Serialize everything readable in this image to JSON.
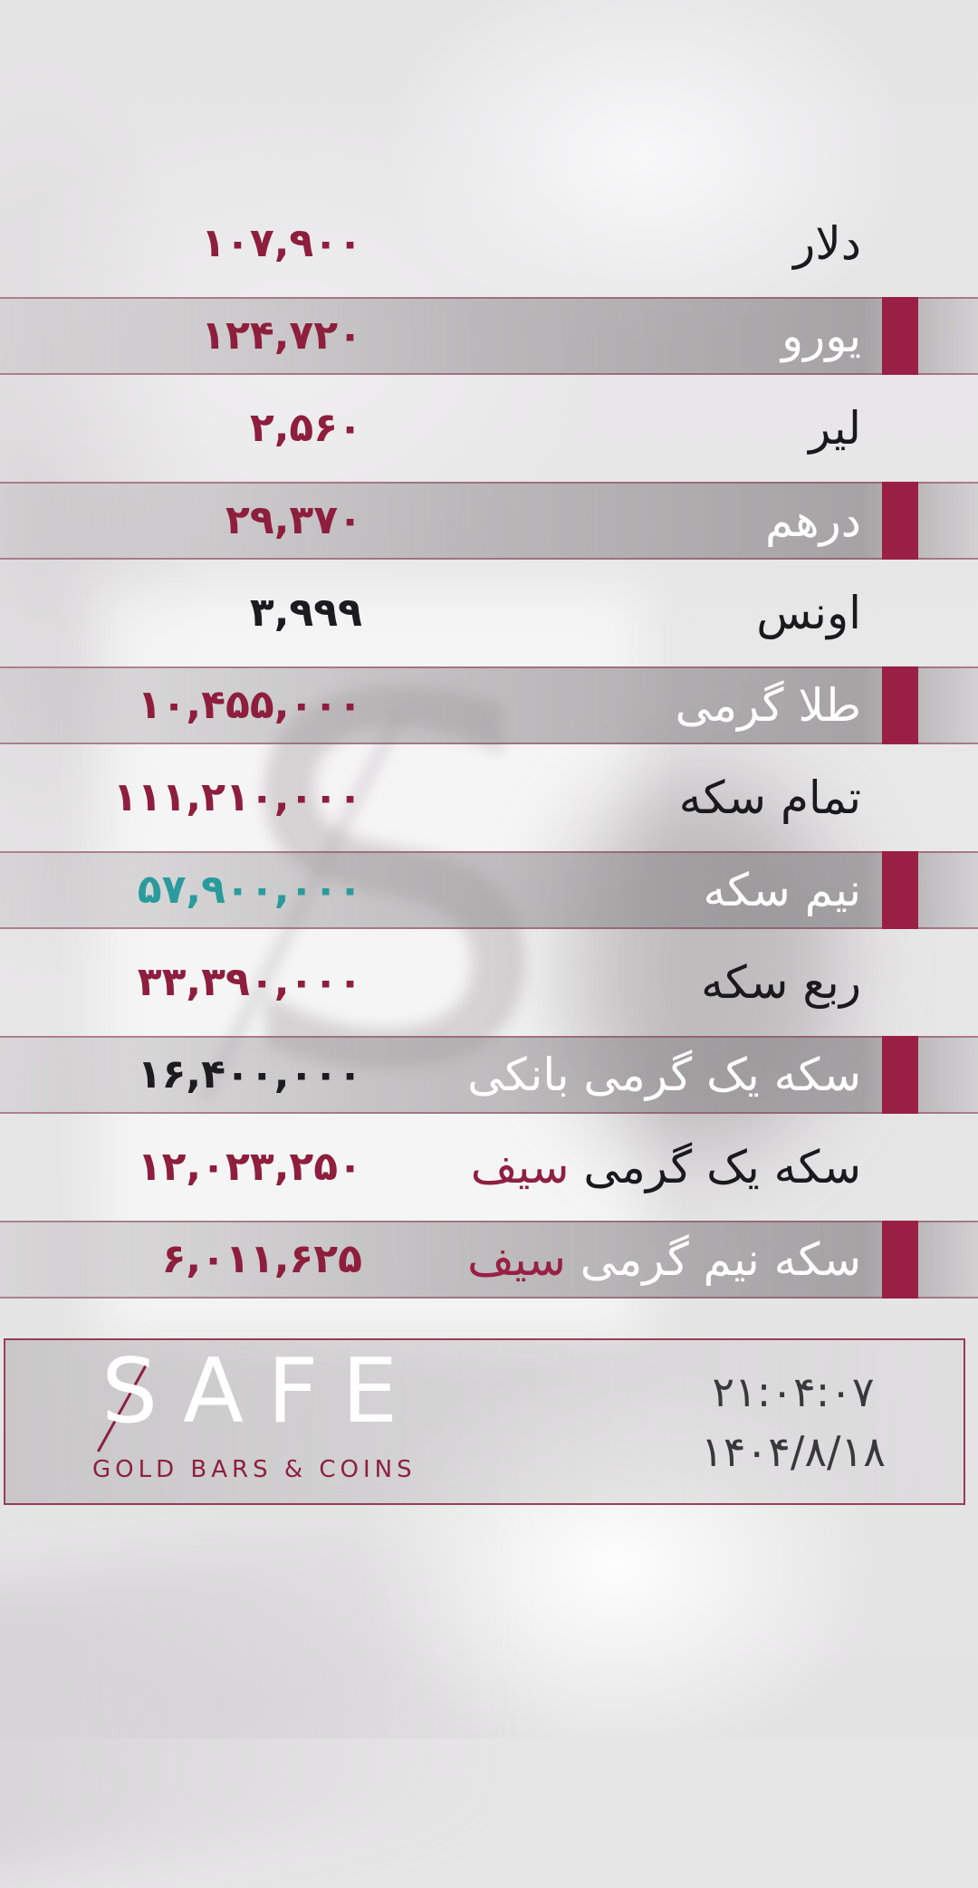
{
  "board": {
    "rows": [
      {
        "label": "دلار",
        "highlight": "",
        "value": "۱۰۷,۹۰۰",
        "value_color": "crimson",
        "band": false
      },
      {
        "label": "یورو",
        "highlight": "",
        "value": "۱۲۴,۷۲۰",
        "value_color": "crimson",
        "band": true
      },
      {
        "label": "لیر",
        "highlight": "",
        "value": "۲,۵۶۰",
        "value_color": "crimson",
        "band": false
      },
      {
        "label": "درهم",
        "highlight": "",
        "value": "۲۹,۳۷۰",
        "value_color": "crimson",
        "band": true
      },
      {
        "label": "اونس",
        "highlight": "",
        "value": "۳,۹۹۹",
        "value_color": "black",
        "band": false
      },
      {
        "label": "طلا گرمی",
        "highlight": "",
        "value": "۱۰,۴۵۵,۰۰۰",
        "value_color": "crimson",
        "band": true
      },
      {
        "label": "تمام سکه",
        "highlight": "",
        "value": "۱۱۱,۲۱۰,۰۰۰",
        "value_color": "crimson",
        "band": false
      },
      {
        "label": "نیم سکه",
        "highlight": "",
        "value": "۵۷,۹۰۰,۰۰۰",
        "value_color": "teal",
        "band": true
      },
      {
        "label": "ربع سکه",
        "highlight": "",
        "value": "۳۳,۳۹۰,۰۰۰",
        "value_color": "crimson",
        "band": false
      },
      {
        "label": "سکه یک گرمی بانکی",
        "highlight": "",
        "value": "۱۶,۴۰۰,۰۰۰",
        "value_color": "black",
        "band": true
      },
      {
        "label": "سکه یک گرمی",
        "highlight": "سیف",
        "value": "۱۲,۰۲۳,۲۵۰",
        "value_color": "crimson",
        "band": false
      },
      {
        "label": "سکه نیم گرمی",
        "highlight": "سیف",
        "value": "۶,۰۱۱,۶۲۵",
        "value_color": "crimson",
        "band": true
      }
    ]
  },
  "footer": {
    "brand": "SAFE",
    "brand_sub": "GOLD BARS & COINS",
    "time": "۲۱:۰۴:۰۷",
    "date": "۱۴۰۴/۸/۱۸"
  },
  "watermark": "S",
  "colors": {
    "accent_crimson": "#9a1f44",
    "value_crimson": "#8e1e3d",
    "value_teal": "#2a9b9d",
    "value_black": "#1c1c1f",
    "band_border": "#862c46"
  }
}
